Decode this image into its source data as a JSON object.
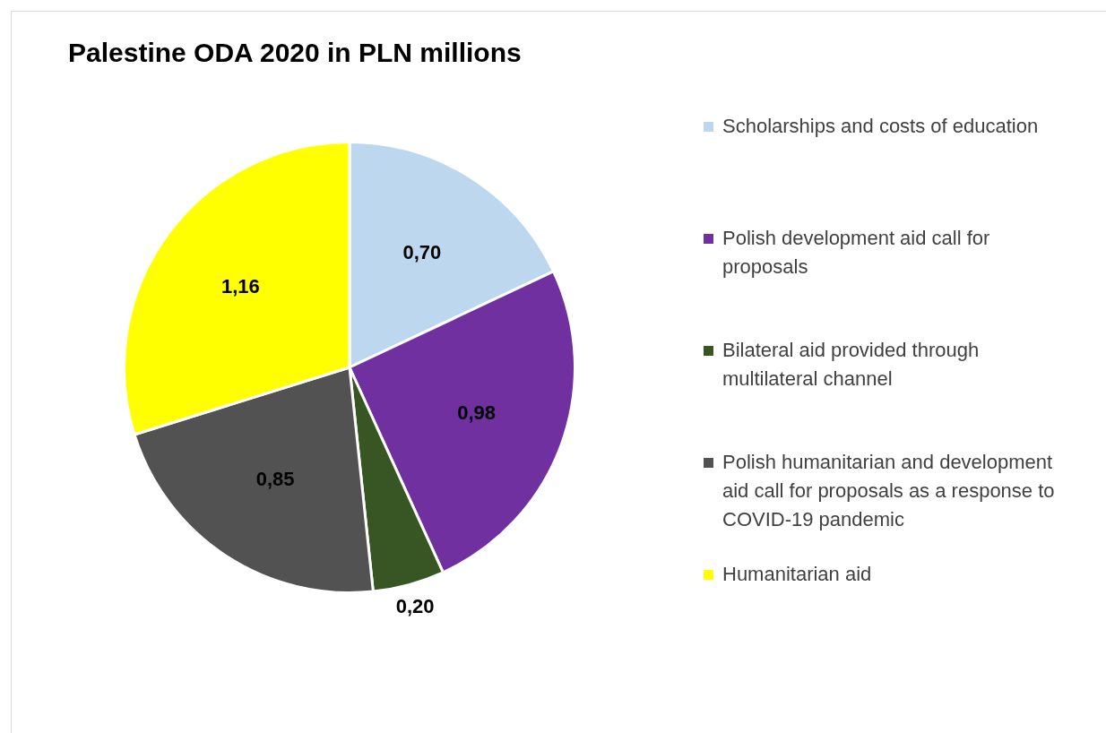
{
  "chart_data": {
    "type": "pie",
    "title": "Palestine ODA 2020 in PLN millions",
    "categories": [
      "Scholarships and costs of education",
      "Polish development aid call for proposals",
      "Bilateral aid provided through multilateral channel",
      "Polish humanitarian and development aid call for proposals as a response to COVID-19 pandemic",
      "Humanitarian aid"
    ],
    "values": [
      0.7,
      0.98,
      0.2,
      0.85,
      1.16
    ],
    "value_labels": [
      "0,70",
      "0,98",
      "0,20",
      "0,85",
      "1,16"
    ],
    "colors": [
      "#bdd7ee",
      "#7030a0",
      "#375623",
      "#525252",
      "#ffff00"
    ],
    "legend": "right"
  }
}
